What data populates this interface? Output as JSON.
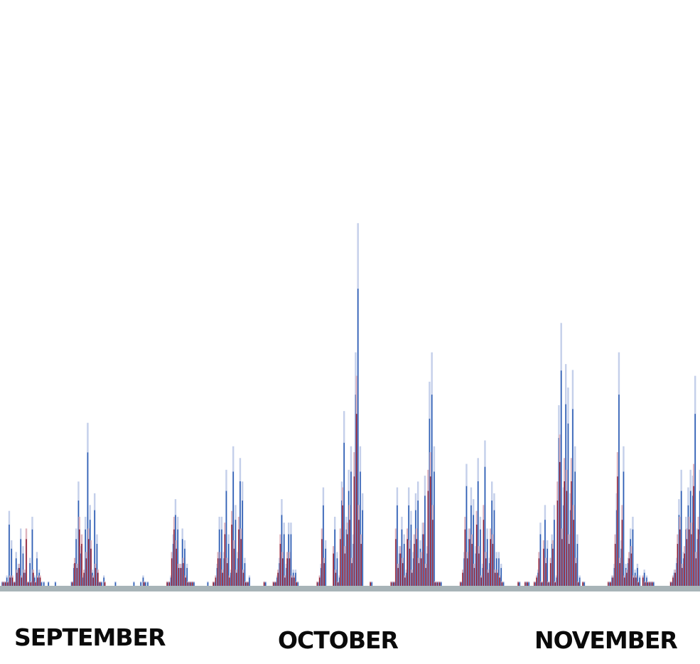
{
  "chart_data": {
    "type": "bar",
    "title": "",
    "xlabel": "",
    "ylabel": "",
    "x_tick_labels": [
      "SEPTEMBER",
      "OCTOBER",
      "NOVEMBER"
    ],
    "ylim": [
      0,
      100
    ],
    "grid": false,
    "legend": "none",
    "colors": {
      "series_a": "#2f5fb5",
      "series_a_light": "#c4cfea",
      "series_b": "#8e1e33",
      "series_b_light": "#dfb2bb",
      "baseline": "#a8b4b8"
    },
    "pairs_per_day": 3,
    "days": 81,
    "series": [
      {
        "values": [
          1,
          1,
          2,
          13,
          8,
          1,
          6,
          4,
          10,
          7,
          3,
          1,
          5,
          12,
          2,
          6,
          3,
          1,
          1,
          0,
          1,
          0,
          0,
          1,
          0,
          0,
          0,
          0,
          0,
          0,
          1,
          4,
          10,
          18,
          7,
          2,
          12,
          28,
          14,
          3,
          16,
          9,
          1,
          1,
          2,
          0,
          0,
          0,
          0,
          1,
          0,
          0,
          0,
          0,
          0,
          0,
          0,
          1,
          0,
          0,
          1,
          2,
          1,
          1,
          0,
          0,
          0,
          0,
          0,
          0,
          0,
          0,
          1,
          2,
          9,
          15,
          12,
          4,
          10,
          8,
          4,
          1,
          1,
          1,
          0,
          0,
          0,
          0,
          0,
          1,
          0,
          0,
          1,
          4,
          12,
          12,
          6,
          20,
          9,
          3,
          24,
          14,
          6,
          22,
          18,
          5,
          1,
          2,
          0,
          0,
          0,
          0,
          0,
          0,
          1,
          0,
          0,
          0,
          1,
          2,
          5,
          15,
          11,
          4,
          11,
          11,
          3,
          3,
          1,
          0,
          0,
          0,
          0,
          0,
          0,
          0,
          0,
          1,
          4,
          17,
          8,
          0,
          0,
          0,
          12,
          6,
          2,
          18,
          30,
          12,
          20,
          24,
          9,
          40,
          62,
          24,
          16,
          0,
          0,
          0,
          1,
          0,
          0,
          0,
          0,
          0,
          0,
          0,
          0,
          1,
          1,
          17,
          7,
          12,
          9,
          3,
          17,
          13,
          6,
          16,
          18,
          8,
          11,
          19,
          7,
          35,
          40,
          24,
          1,
          1,
          1,
          0,
          0,
          0,
          0,
          0,
          0,
          0,
          0,
          1,
          6,
          21,
          10,
          17,
          15,
          7,
          22,
          12,
          4,
          25,
          10,
          5,
          18,
          16,
          6,
          6,
          4,
          1,
          0,
          0,
          0,
          0,
          0,
          0,
          1,
          0,
          0,
          1,
          1,
          0,
          0,
          1,
          3,
          11,
          1,
          14,
          8,
          1,
          9,
          14,
          2,
          31,
          45,
          17,
          38,
          34,
          16,
          37,
          24,
          9,
          2,
          0,
          1,
          0,
          0,
          0,
          0,
          0,
          0,
          0,
          0,
          0,
          0,
          1,
          2,
          4,
          16,
          40,
          8,
          24,
          4,
          5,
          10,
          12,
          3,
          4,
          2,
          0,
          3,
          2,
          1,
          1,
          1,
          0,
          0,
          0,
          0,
          0,
          0,
          0,
          1,
          3,
          5,
          15,
          20,
          6,
          12,
          17,
          20,
          19,
          36,
          10,
          20,
          16,
          3,
          5,
          2,
          0,
          0,
          0,
          0,
          0,
          0,
          1,
          0,
          1,
          1,
          3,
          6,
          11,
          17,
          7,
          15,
          20,
          14,
          20,
          36,
          9,
          14,
          21,
          11,
          21,
          39,
          7,
          0,
          1,
          1,
          0,
          0,
          1,
          0,
          1,
          1,
          0,
          0,
          1,
          0,
          5,
          19,
          29,
          13,
          21,
          16,
          8,
          18,
          27,
          11,
          2,
          0,
          1,
          1,
          0,
          1,
          0,
          0,
          0,
          0,
          0,
          0,
          1,
          1,
          2,
          13,
          16,
          9,
          8,
          11,
          13,
          12,
          3,
          1,
          1,
          0,
          0,
          0,
          0,
          0,
          0,
          0,
          0,
          1,
          2,
          7,
          4,
          7,
          6,
          2,
          4,
          5,
          3,
          2,
          1,
          0,
          0,
          0,
          0,
          0,
          0,
          1,
          0,
          0,
          1,
          1,
          1
        ],
        "color": "#2f5fb5"
      },
      {
        "values": [
          1,
          1,
          1,
          2,
          2,
          1,
          3,
          4,
          2,
          3,
          10,
          1,
          1,
          3,
          1,
          2,
          2,
          0,
          0,
          0,
          0,
          0,
          0,
          0,
          0,
          0,
          0,
          0,
          0,
          0,
          1,
          5,
          4,
          12,
          9,
          3,
          6,
          10,
          8,
          2,
          4,
          3,
          1,
          0,
          1,
          0,
          0,
          0,
          0,
          0,
          0,
          0,
          0,
          0,
          0,
          0,
          0,
          0,
          0,
          0,
          0,
          1,
          0,
          0,
          0,
          0,
          0,
          0,
          0,
          0,
          0,
          1,
          1,
          6,
          12,
          8,
          4,
          4,
          5,
          2,
          1,
          1,
          1,
          0,
          0,
          0,
          0,
          0,
          0,
          0,
          0,
          1,
          2,
          6,
          6,
          3,
          11,
          5,
          2,
          13,
          8,
          3,
          12,
          10,
          3,
          1,
          1,
          0,
          0,
          0,
          0,
          0,
          0,
          1,
          0,
          0,
          0,
          1,
          1,
          3,
          9,
          6,
          2,
          6,
          6,
          2,
          2,
          1,
          0,
          0,
          0,
          0,
          0,
          0,
          0,
          0,
          1,
          2,
          10,
          5,
          0,
          0,
          0,
          7,
          3,
          1,
          10,
          17,
          7,
          11,
          14,
          5,
          23,
          36,
          14,
          9,
          0,
          0,
          0,
          1,
          0,
          0,
          0,
          0,
          0,
          0,
          0,
          0,
          1,
          1,
          10,
          4,
          7,
          5,
          2,
          10,
          8,
          3,
          9,
          10,
          5,
          6,
          11,
          4,
          20,
          23,
          14,
          1,
          1,
          1,
          0,
          0,
          0,
          0,
          0,
          0,
          0,
          0,
          1,
          3,
          12,
          6,
          10,
          9,
          4,
          13,
          7,
          2,
          14,
          6,
          3,
          10,
          9,
          3,
          3,
          2,
          1,
          0,
          0,
          0,
          0,
          0,
          0,
          1,
          0,
          0,
          1,
          1,
          0,
          0,
          1,
          2,
          6,
          1,
          8,
          5,
          1,
          5,
          8,
          1,
          18,
          26,
          10,
          22,
          20,
          9,
          22,
          14,
          5,
          1,
          0,
          1,
          0,
          0,
          0,
          0,
          0,
          0,
          0,
          0,
          0,
          0,
          1,
          1,
          2,
          9,
          23,
          5,
          14,
          2,
          3,
          6,
          7,
          2,
          2,
          1,
          0,
          2,
          1,
          1,
          1,
          1,
          0,
          0,
          0,
          0,
          0,
          0,
          0,
          1,
          2,
          3,
          9,
          12,
          4,
          7,
          10,
          12,
          11,
          21,
          6,
          12,
          9,
          2,
          3,
          1,
          0,
          0,
          0,
          0,
          0,
          0,
          1,
          0,
          1,
          1,
          2,
          4,
          6,
          10,
          4,
          9,
          12,
          8,
          12,
          21,
          5,
          8,
          12,
          6,
          12,
          23,
          4,
          0,
          1,
          1,
          0,
          0,
          1,
          0,
          1,
          1,
          0,
          0,
          1,
          0,
          3,
          11,
          17,
          8,
          12,
          9,
          5,
          10,
          16,
          6,
          1,
          0,
          1,
          1,
          0,
          1,
          0,
          0,
          0,
          0,
          0,
          0,
          1,
          1,
          1,
          8,
          9,
          5,
          5,
          6,
          8,
          7,
          2,
          1,
          1,
          0,
          0,
          0,
          0,
          0,
          0,
          0,
          0,
          1,
          1,
          4,
          2,
          4,
          4,
          1,
          2,
          3,
          2,
          1,
          1,
          0,
          0,
          0,
          0,
          0,
          0,
          1,
          0,
          0,
          1,
          1,
          1
        ],
        "color": "#8e1e33"
      }
    ]
  }
}
